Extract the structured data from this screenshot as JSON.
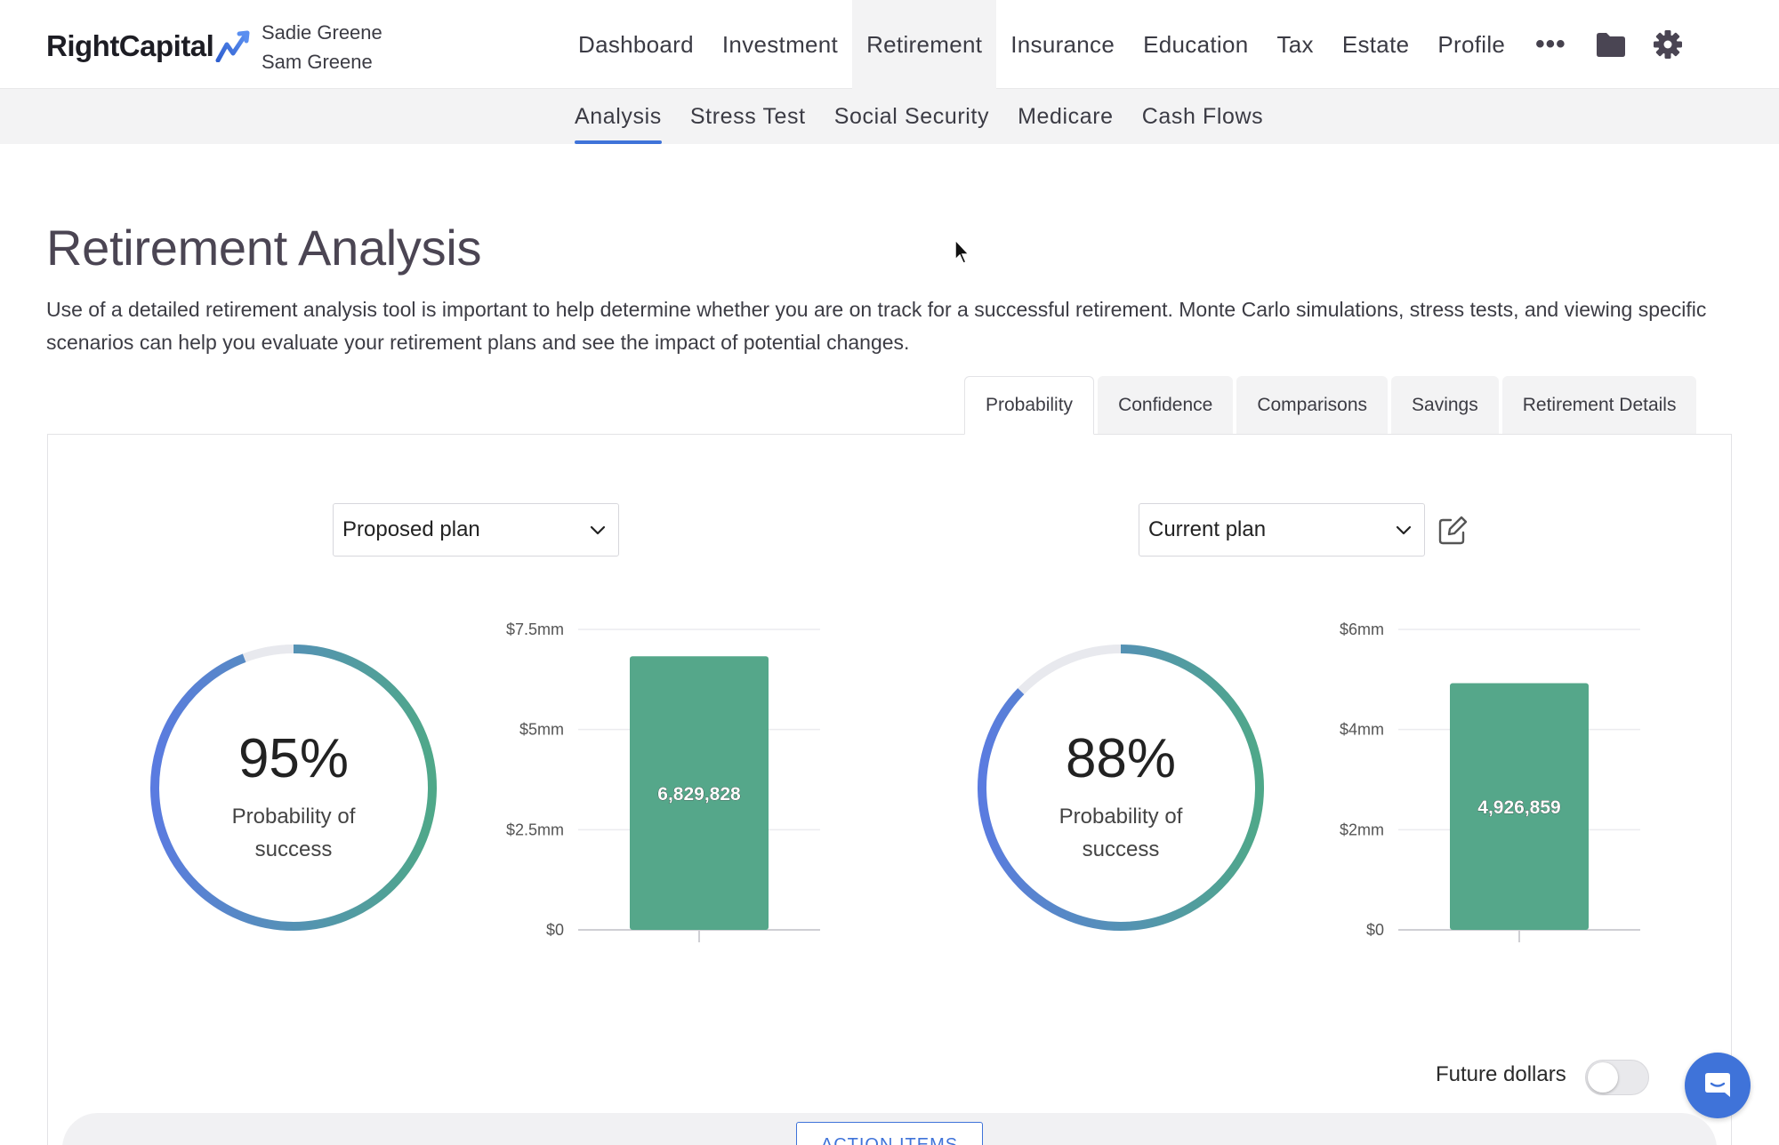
{
  "header": {
    "logo_text": "RightCapital",
    "client_1": "Sadie Greene",
    "client_2": "Sam Greene",
    "nav": [
      "Dashboard",
      "Investment",
      "Retirement",
      "Insurance",
      "Education",
      "Tax",
      "Estate",
      "Profile"
    ],
    "active_nav": "Retirement",
    "more": "•••",
    "icons": [
      "folder-icon",
      "gear-icon"
    ]
  },
  "subnav": {
    "items": [
      "Analysis",
      "Stress Test",
      "Social Security",
      "Medicare",
      "Cash Flows"
    ],
    "active": "Analysis"
  },
  "page": {
    "title": "Retirement Analysis",
    "intro": "Use of a detailed retirement analysis tool is important to help determine whether you are on track for a successful retirement. Monte Carlo simulations, stress tests, and viewing specific scenarios can help you evaluate your retirement plans and see the impact of potential changes."
  },
  "tabs": {
    "items": [
      "Probability",
      "Confidence",
      "Comparisons",
      "Savings",
      "Retirement Details"
    ],
    "active": "Probability"
  },
  "left_plan": {
    "select_value": "Proposed plan",
    "probability": 0.95,
    "probability_text": "95%",
    "probability_label": "Probability of success"
  },
  "right_plan": {
    "select_value": "Current plan",
    "probability": 0.88,
    "probability_text": "88%",
    "probability_label": "Probability of success"
  },
  "chart_data": [
    {
      "type": "bar",
      "categories": [
        ""
      ],
      "values": [
        6829828
      ],
      "data_labels": [
        "6,829,828"
      ],
      "yticks": [
        "$0",
        "$2.5mm",
        "$5mm",
        "$7.5mm"
      ],
      "ytick_values": [
        0,
        2500000,
        5000000,
        7500000
      ],
      "ylim": [
        0,
        7500000
      ],
      "grid": true,
      "color": "#55a78a"
    },
    {
      "type": "bar",
      "categories": [
        ""
      ],
      "values": [
        4926859
      ],
      "data_labels": [
        "4,926,859"
      ],
      "yticks": [
        "$0",
        "$2mm",
        "$4mm",
        "$6mm"
      ],
      "ytick_values": [
        0,
        2000000,
        4000000,
        6000000
      ],
      "ylim": [
        0,
        6000000
      ],
      "grid": true,
      "color": "#55a78a"
    }
  ],
  "footer": {
    "future_dollars_label": "Future dollars",
    "future_dollars_on": false,
    "action_button": "ACTION ITEMS"
  },
  "colors": {
    "accent": "#3f73d9",
    "bar": "#55a78a",
    "gauge_start": "#5a7be0",
    "gauge_end": "#4fa889",
    "gauge_track": "#e8e9ee"
  }
}
